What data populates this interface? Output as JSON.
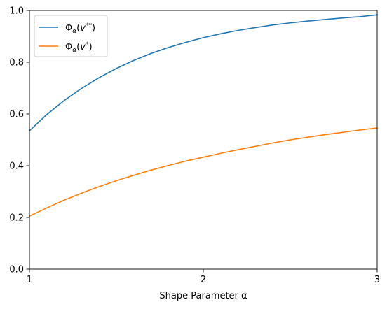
{
  "chart_data": {
    "type": "line",
    "xlabel": "Shape Parameter α",
    "ylabel": "",
    "xlim": [
      1,
      3
    ],
    "ylim": [
      0.0,
      1.0
    ],
    "xticks": [
      1,
      2,
      3
    ],
    "xtick_labels": [
      "1",
      "2",
      "3"
    ],
    "yticks": [
      0.0,
      0.2,
      0.4,
      0.6,
      0.8,
      1.0
    ],
    "ytick_labels": [
      "0.0",
      "0.2",
      "0.4",
      "0.6",
      "0.8",
      "1.0"
    ],
    "grid": false,
    "legend_position": "upper-left",
    "series": [
      {
        "name": "Φα(v**)",
        "name_base": "Φ",
        "name_sub": "α",
        "name_arg": "v",
        "name_sup": "**",
        "color": "#1f77b4",
        "x": [
          1.0,
          1.1,
          1.2,
          1.3,
          1.4,
          1.5,
          1.6,
          1.7,
          1.8,
          1.9,
          2.0,
          2.1,
          2.2,
          2.3,
          2.4,
          2.5,
          2.6,
          2.7,
          2.8,
          2.9,
          3.0
        ],
        "y": [
          0.535,
          0.598,
          0.652,
          0.699,
          0.74,
          0.776,
          0.807,
          0.834,
          0.857,
          0.877,
          0.895,
          0.91,
          0.923,
          0.934,
          0.944,
          0.952,
          0.959,
          0.965,
          0.971,
          0.976,
          0.983
        ]
      },
      {
        "name": "Φα(v*)",
        "name_base": "Φ",
        "name_sub": "α",
        "name_arg": "v",
        "name_sup": "*",
        "color": "#ff7f0e",
        "x": [
          1.0,
          1.1,
          1.2,
          1.3,
          1.4,
          1.5,
          1.6,
          1.7,
          1.8,
          1.9,
          2.0,
          2.1,
          2.2,
          2.3,
          2.4,
          2.5,
          2.6,
          2.7,
          2.8,
          2.9,
          3.0
        ],
        "y": [
          0.205,
          0.237,
          0.267,
          0.294,
          0.319,
          0.342,
          0.363,
          0.383,
          0.401,
          0.418,
          0.433,
          0.448,
          0.462,
          0.475,
          0.488,
          0.5,
          0.51,
          0.52,
          0.529,
          0.538,
          0.546
        ]
      }
    ]
  }
}
